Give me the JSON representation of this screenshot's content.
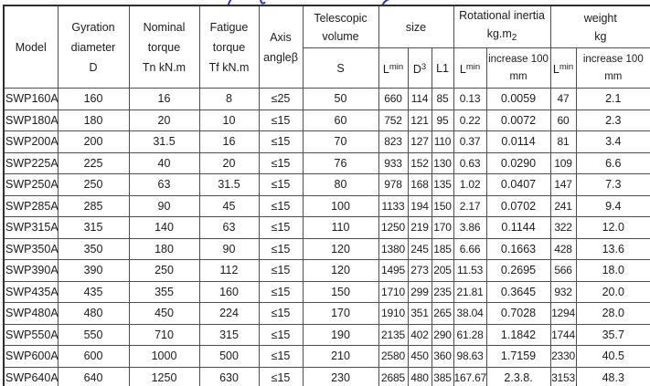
{
  "decor": {
    "ink_color": "#2534cc",
    "description": "cropped blue handwriting fragments above table"
  },
  "table": {
    "header": {
      "model": "Model",
      "gyration": "Gyration\ndiameter\nD",
      "nominal": "Nominal\ntorque\nTn kN.m",
      "fatigue": "Fatigue\ntorque\nTf kN.m",
      "axis": "Axis\nangleβ",
      "telescopic": "Telescopic\nvolume",
      "telescopic_sub": "S",
      "size": "size",
      "lmin_base": "L",
      "lmin_sup": "min",
      "d3_base": "D",
      "d3_sup": "3",
      "l1": "L1",
      "inertia_line1": "Rotational inertia",
      "inertia_line2_base": "kg.m",
      "inertia_line2_sub": "2",
      "inertia_increase": "increase 100\nmm",
      "weight": "weight\nkg",
      "weight_increase": "increase 100\nmm"
    },
    "columns": [
      "model",
      "gyration_diameter_D",
      "nominal_torque_Tn_kNm",
      "fatigue_torque_Tf_kNm",
      "axis_angle_beta",
      "telescopic_volume_S",
      "size_Lmin",
      "size_D3",
      "size_L1",
      "inertia_Lmin",
      "inertia_increase_100mm",
      "weight_Lmin",
      "weight_increase_100mm"
    ],
    "rows": [
      [
        "SWP160A",
        "160",
        "16",
        "8",
        "≤25",
        "50",
        "660",
        "114",
        "85",
        "0.13",
        "0.0059",
        "47",
        "2.1"
      ],
      [
        "SWP180A",
        "180",
        "20",
        "10",
        "≤15",
        "60",
        "752",
        "121",
        "95",
        "0.22",
        "0.0072",
        "60",
        "2.3"
      ],
      [
        "SWP200A",
        "200",
        "31.5",
        "16",
        "≤15",
        "70",
        "823",
        "127",
        "110",
        "0.37",
        "0.0114",
        "81",
        "3.4"
      ],
      [
        "SWP225A",
        "225",
        "40",
        "20",
        "≤15",
        "76",
        "933",
        "152",
        "130",
        "0.63",
        "0.0290",
        "109",
        "6.6"
      ],
      [
        "SWP250A",
        "250",
        "63",
        "31.5",
        "≤15",
        "80",
        "978",
        "168",
        "135",
        "1.02",
        "0.0407",
        "147",
        "7.3"
      ],
      [
        "SWP285A",
        "285",
        "90",
        "45",
        "≤15",
        "100",
        "1133",
        "194",
        "150",
        "2.17",
        "0.0702",
        "241",
        "9.4"
      ],
      [
        "SWP315A",
        "315",
        "140",
        "63",
        "≤15",
        "110",
        "1250",
        "219",
        "170",
        "3.86",
        "0.1144",
        "322",
        "12.0"
      ],
      [
        "SWP350A",
        "350",
        "180",
        "90",
        "≤15",
        "120",
        "1380",
        "245",
        "185",
        "6.66",
        "0.1663",
        "428",
        "13.6"
      ],
      [
        "SWP390A",
        "390",
        "250",
        "112",
        "≤15",
        "120",
        "1495",
        "273",
        "205",
        "11.53",
        "0.2695",
        "566",
        "18.0"
      ],
      [
        "SWP435A",
        "435",
        "355",
        "160",
        "≤15",
        "150",
        "1710",
        "299",
        "235",
        "21.81",
        "0.3645",
        "932",
        "20.0"
      ],
      [
        "SWP480A",
        "480",
        "450",
        "224",
        "≤15",
        "170",
        "1910",
        "351",
        "265",
        "38.04",
        "0.7028",
        "1294",
        "28.0"
      ],
      [
        "SWP550A",
        "550",
        "710",
        "315",
        "≤15",
        "190",
        "2135",
        "402",
        "290",
        "61.28",
        "1.1842",
        "1744",
        "35.7"
      ],
      [
        "SWP600A",
        "600",
        "1000",
        "500",
        "≤15",
        "210",
        "2580",
        "450",
        "360",
        "98.63",
        "1.7159",
        "2330",
        "40.5"
      ],
      [
        "SWP640A",
        "640",
        "1250",
        "630",
        "≤15",
        "230",
        "2685",
        "480",
        "385",
        "167.67",
        "2.3.8.",
        "3153",
        "48.3"
      ]
    ]
  }
}
